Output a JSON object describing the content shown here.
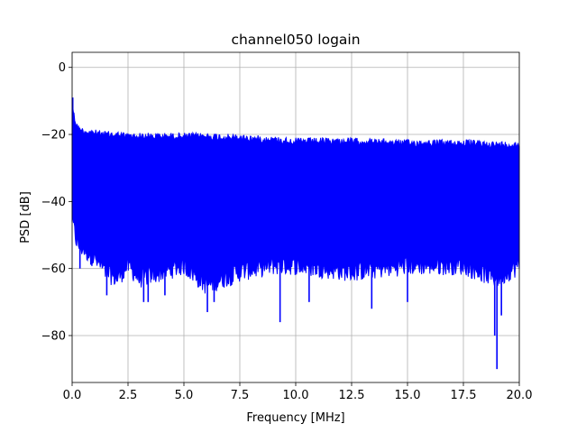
{
  "chart_data": {
    "type": "line",
    "title": "channel050 logain",
    "xlabel": "Frequency [MHz]",
    "ylabel": "PSD [dB]",
    "xlim": [
      0,
      20
    ],
    "ylim": [
      -94,
      4.5
    ],
    "xticks": [
      0.0,
      2.5,
      5.0,
      7.5,
      10.0,
      12.5,
      15.0,
      17.5,
      20.0
    ],
    "xtick_labels": [
      "0.0",
      "2.5",
      "5.0",
      "7.5",
      "10.0",
      "12.5",
      "15.0",
      "17.5",
      "20.0"
    ],
    "yticks": [
      0,
      -20,
      -40,
      -60,
      -80
    ],
    "ytick_labels": [
      "0",
      "−20",
      "−40",
      "−60",
      "−80"
    ],
    "grid": true,
    "series": [
      {
        "color": "#0000ff",
        "x": [
          0.0,
          0.1,
          0.25,
          0.5,
          1.0,
          1.5,
          2.0,
          2.5,
          3.0,
          4.0,
          5.0,
          6.0,
          7.5,
          9.0,
          10.0,
          12.5,
          15.0,
          17.5,
          19.0,
          20.0
        ],
        "upper_envelope": [
          -9,
          -14,
          -17,
          -18,
          -18.5,
          -19,
          -19,
          -19.5,
          -19.5,
          -19.5,
          -19.5,
          -19.5,
          -20,
          -20.5,
          -21,
          -21,
          -21.5,
          -21.5,
          -22,
          -22
        ],
        "lower_envelope": [
          -48,
          -52,
          -56,
          -57,
          -60,
          -64,
          -66,
          -62,
          -66,
          -64,
          -62,
          -68,
          -64,
          -62,
          -62,
          -64,
          -62,
          -62,
          -66,
          -62
        ],
        "deep_minima": [
          {
            "x": 0.35,
            "y": -60
          },
          {
            "x": 1.55,
            "y": -68
          },
          {
            "x": 3.2,
            "y": -70
          },
          {
            "x": 3.4,
            "y": -70
          },
          {
            "x": 4.15,
            "y": -68
          },
          {
            "x": 6.05,
            "y": -73
          },
          {
            "x": 6.35,
            "y": -70
          },
          {
            "x": 9.3,
            "y": -76
          },
          {
            "x": 10.6,
            "y": -70
          },
          {
            "x": 13.4,
            "y": -72
          },
          {
            "x": 15.0,
            "y": -70
          },
          {
            "x": 18.9,
            "y": -80
          },
          {
            "x": 19.0,
            "y": -90
          },
          {
            "x": 19.2,
            "y": -74
          }
        ]
      }
    ]
  }
}
